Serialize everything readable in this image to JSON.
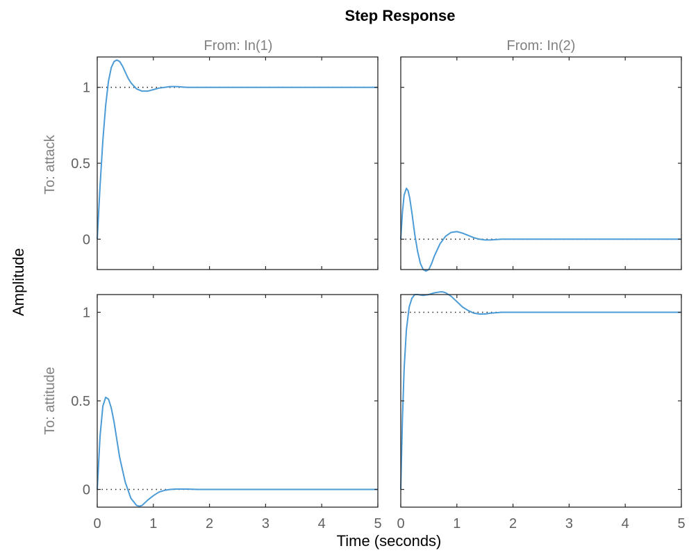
{
  "chart_data": {
    "type": "line",
    "title": "Step Response",
    "xlabel": "Time (seconds)",
    "ylabel": "Amplitude",
    "line_color": "#4a9bd6",
    "reference_color": "#262626",
    "grid": false,
    "xlim": [
      0,
      5
    ],
    "x_ticks": [
      0,
      1,
      2,
      3,
      4,
      5
    ],
    "inputs": [
      "From: In(1)",
      "From: In(2)"
    ],
    "outputs": [
      "To: attack",
      "To: attitude"
    ],
    "row_ylims": [
      [
        -0.2,
        1.2
      ],
      [
        -0.1,
        1.1
      ]
    ],
    "row_yticks": [
      [
        0,
        0.5,
        1
      ],
      [
        0,
        0.5,
        1
      ]
    ],
    "panels": [
      {
        "row": 0,
        "col": 0,
        "input": "In(1)",
        "output": "attack",
        "steady_state": 1,
        "x": [
          0,
          0.05,
          0.1,
          0.15,
          0.2,
          0.25,
          0.3,
          0.35,
          0.4,
          0.45,
          0.5,
          0.55,
          0.6,
          0.7,
          0.8,
          0.9,
          1.0,
          1.1,
          1.2,
          1.3,
          1.4,
          1.6,
          1.8,
          2.0,
          2.5,
          3.0,
          3.5,
          4.0,
          4.5,
          5.0
        ],
        "y": [
          0,
          0.35,
          0.65,
          0.88,
          1.04,
          1.13,
          1.17,
          1.18,
          1.17,
          1.14,
          1.1,
          1.06,
          1.03,
          0.99,
          0.975,
          0.975,
          0.985,
          0.995,
          1.0,
          1.005,
          1.005,
          1.0,
          1.0,
          1.0,
          1.0,
          1.0,
          1.0,
          1.0,
          1.0,
          1.0
        ]
      },
      {
        "row": 0,
        "col": 1,
        "input": "In(2)",
        "output": "attack",
        "steady_state": 0,
        "x": [
          0,
          0.03,
          0.06,
          0.1,
          0.13,
          0.16,
          0.2,
          0.25,
          0.3,
          0.35,
          0.4,
          0.45,
          0.5,
          0.55,
          0.6,
          0.7,
          0.8,
          0.9,
          1.0,
          1.1,
          1.2,
          1.3,
          1.4,
          1.5,
          1.6,
          1.8,
          2.0,
          2.5,
          3.0,
          3.5,
          4.0,
          4.5,
          5.0
        ],
        "y": [
          0,
          0.18,
          0.29,
          0.335,
          0.32,
          0.27,
          0.17,
          0.03,
          -0.08,
          -0.16,
          -0.2,
          -0.21,
          -0.2,
          -0.16,
          -0.11,
          -0.03,
          0.02,
          0.045,
          0.05,
          0.04,
          0.025,
          0.01,
          0.0,
          -0.005,
          -0.005,
          0.0,
          0.0,
          0.0,
          0.0,
          0.0,
          0.0,
          0.0,
          0.0
        ]
      },
      {
        "row": 1,
        "col": 0,
        "input": "In(1)",
        "output": "attitude",
        "steady_state": 0,
        "x": [
          0,
          0.05,
          0.1,
          0.15,
          0.2,
          0.25,
          0.3,
          0.35,
          0.4,
          0.5,
          0.6,
          0.7,
          0.75,
          0.8,
          0.9,
          1.0,
          1.1,
          1.2,
          1.3,
          1.4,
          1.6,
          1.8,
          2.0,
          2.5,
          3.0,
          3.5,
          4.0,
          4.5,
          5.0
        ],
        "y": [
          0,
          0.3,
          0.47,
          0.52,
          0.51,
          0.46,
          0.38,
          0.28,
          0.18,
          0.04,
          -0.05,
          -0.09,
          -0.095,
          -0.09,
          -0.06,
          -0.035,
          -0.015,
          -0.005,
          0.0,
          0.002,
          0.002,
          0.0,
          0.0,
          0.0,
          0.0,
          0.0,
          0.0,
          0.0,
          0.0
        ]
      },
      {
        "row": 1,
        "col": 1,
        "input": "In(2)",
        "output": "attitude",
        "steady_state": 1,
        "x": [
          0,
          0.03,
          0.06,
          0.1,
          0.15,
          0.2,
          0.25,
          0.3,
          0.4,
          0.5,
          0.6,
          0.7,
          0.75,
          0.8,
          0.9,
          1.0,
          1.1,
          1.2,
          1.3,
          1.4,
          1.5,
          1.6,
          1.8,
          2.0,
          2.5,
          3.0,
          3.5,
          4.0,
          4.5,
          5.0
        ],
        "y": [
          0,
          0.4,
          0.68,
          0.9,
          1.03,
          1.08,
          1.1,
          1.1,
          1.095,
          1.1,
          1.11,
          1.115,
          1.115,
          1.11,
          1.09,
          1.06,
          1.03,
          1.01,
          0.995,
          0.99,
          0.99,
          0.995,
          1.0,
          1.0,
          1.0,
          1.0,
          1.0,
          1.0,
          1.0,
          1.0
        ]
      }
    ]
  }
}
